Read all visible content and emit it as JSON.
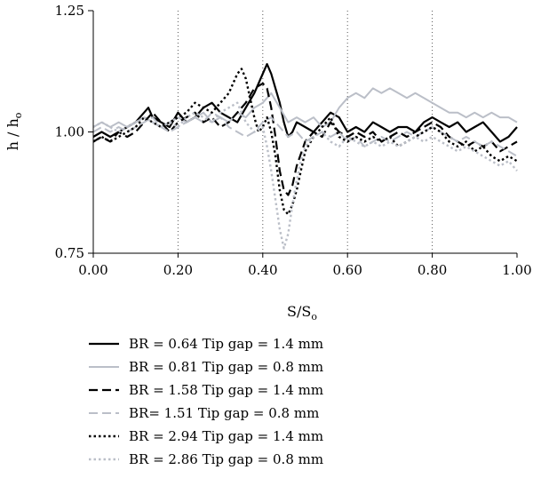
{
  "chart_data": {
    "type": "line",
    "xlabel": {
      "main": "S/S",
      "sub": "o"
    },
    "ylabel": {
      "main": "h / h",
      "sub": "o"
    },
    "xlim": [
      0,
      1.0
    ],
    "ylim": [
      0.75,
      1.25
    ],
    "xticks": [
      "0.00",
      "0.20",
      "0.40",
      "0.60",
      "0.80",
      "1.00"
    ],
    "yticks": [
      "0.75",
      "1.00",
      "1.25"
    ],
    "xtick_values": [
      0,
      0.2,
      0.4,
      0.6,
      0.8,
      1.0
    ],
    "ytick_values": [
      0.75,
      1.0,
      1.25
    ],
    "vertical_gridlines": [
      0.2,
      0.4,
      0.6,
      0.8
    ],
    "legend_position": "bottom",
    "series": [
      {
        "name": "BR = 0.64 Tip gap = 1.4 mm",
        "color": "#000000",
        "dash": "solid",
        "width": 2.2,
        "x": [
          0.0,
          0.02,
          0.04,
          0.06,
          0.08,
          0.1,
          0.12,
          0.13,
          0.14,
          0.16,
          0.18,
          0.2,
          0.22,
          0.24,
          0.26,
          0.28,
          0.3,
          0.32,
          0.34,
          0.36,
          0.38,
          0.4,
          0.41,
          0.42,
          0.43,
          0.44,
          0.45,
          0.46,
          0.47,
          0.48,
          0.5,
          0.52,
          0.54,
          0.56,
          0.58,
          0.6,
          0.62,
          0.64,
          0.66,
          0.68,
          0.7,
          0.72,
          0.74,
          0.76,
          0.78,
          0.8,
          0.82,
          0.84,
          0.86,
          0.88,
          0.9,
          0.92,
          0.94,
          0.96,
          0.98,
          1.0
        ],
        "y": [
          0.99,
          1.0,
          0.99,
          1.0,
          1.01,
          1.02,
          1.04,
          1.05,
          1.03,
          1.02,
          1.01,
          1.04,
          1.02,
          1.03,
          1.05,
          1.06,
          1.04,
          1.03,
          1.02,
          1.05,
          1.08,
          1.12,
          1.14,
          1.12,
          1.09,
          1.06,
          1.02,
          0.99,
          1.0,
          1.02,
          1.01,
          1.0,
          1.02,
          1.04,
          1.03,
          1.0,
          1.01,
          1.0,
          1.02,
          1.01,
          1.0,
          1.01,
          1.01,
          1.0,
          1.02,
          1.03,
          1.02,
          1.01,
          1.02,
          1.0,
          1.01,
          1.02,
          1.0,
          0.98,
          0.99,
          1.01
        ]
      },
      {
        "name": "BR = 0.81 Tip gap = 0.8 mm",
        "color": "#bbbfc8",
        "dash": "solid",
        "width": 2.0,
        "x": [
          0.0,
          0.02,
          0.04,
          0.06,
          0.08,
          0.1,
          0.12,
          0.14,
          0.16,
          0.18,
          0.2,
          0.22,
          0.24,
          0.26,
          0.28,
          0.3,
          0.32,
          0.34,
          0.36,
          0.38,
          0.4,
          0.42,
          0.44,
          0.46,
          0.48,
          0.5,
          0.52,
          0.54,
          0.56,
          0.58,
          0.6,
          0.62,
          0.64,
          0.66,
          0.68,
          0.7,
          0.72,
          0.74,
          0.76,
          0.78,
          0.8,
          0.82,
          0.84,
          0.86,
          0.88,
          0.9,
          0.92,
          0.94,
          0.96,
          0.98,
          1.0
        ],
        "y": [
          1.01,
          1.02,
          1.01,
          1.02,
          1.01,
          1.02,
          1.03,
          1.02,
          1.01,
          1.02,
          1.03,
          1.02,
          1.03,
          1.04,
          1.02,
          1.03,
          1.02,
          1.04,
          1.03,
          1.05,
          1.06,
          1.08,
          1.05,
          1.02,
          1.03,
          1.02,
          1.03,
          1.01,
          1.02,
          1.05,
          1.07,
          1.08,
          1.07,
          1.09,
          1.08,
          1.09,
          1.08,
          1.07,
          1.08,
          1.07,
          1.06,
          1.05,
          1.04,
          1.04,
          1.03,
          1.04,
          1.03,
          1.04,
          1.03,
          1.03,
          1.02
        ]
      },
      {
        "name": "BR = 1.58 Tip gap = 1.4 mm",
        "color": "#000000",
        "dash": "10,5",
        "width": 2.2,
        "x": [
          0.0,
          0.02,
          0.04,
          0.06,
          0.08,
          0.1,
          0.12,
          0.14,
          0.16,
          0.18,
          0.2,
          0.22,
          0.24,
          0.26,
          0.28,
          0.3,
          0.32,
          0.34,
          0.36,
          0.38,
          0.4,
          0.41,
          0.42,
          0.43,
          0.44,
          0.45,
          0.46,
          0.47,
          0.48,
          0.5,
          0.52,
          0.54,
          0.56,
          0.58,
          0.6,
          0.62,
          0.64,
          0.66,
          0.68,
          0.7,
          0.72,
          0.74,
          0.76,
          0.78,
          0.8,
          0.82,
          0.84,
          0.86,
          0.88,
          0.9,
          0.92,
          0.94,
          0.96,
          0.98,
          1.0
        ],
        "y": [
          0.98,
          0.99,
          0.98,
          1.0,
          0.99,
          1.0,
          1.02,
          1.04,
          1.02,
          1.0,
          1.02,
          1.03,
          1.04,
          1.02,
          1.03,
          1.01,
          1.02,
          1.04,
          1.06,
          1.09,
          1.1,
          1.09,
          1.05,
          0.99,
          0.92,
          0.88,
          0.87,
          0.89,
          0.93,
          0.98,
          1.0,
          0.99,
          1.02,
          1.0,
          0.99,
          1.0,
          0.99,
          1.0,
          0.98,
          0.99,
          1.0,
          0.99,
          1.0,
          1.01,
          1.02,
          1.01,
          0.99,
          0.98,
          0.97,
          0.98,
          0.97,
          0.98,
          0.96,
          0.97,
          0.98
        ]
      },
      {
        "name": "BR= 1.51 Tip gap = 0.8 mm",
        "color": "#bbbfc8",
        "dash": "10,5",
        "width": 2.0,
        "x": [
          0.0,
          0.02,
          0.04,
          0.06,
          0.08,
          0.1,
          0.12,
          0.14,
          0.16,
          0.18,
          0.2,
          0.22,
          0.24,
          0.26,
          0.28,
          0.3,
          0.32,
          0.34,
          0.36,
          0.38,
          0.4,
          0.42,
          0.44,
          0.46,
          0.48,
          0.5,
          0.52,
          0.54,
          0.56,
          0.58,
          0.6,
          0.62,
          0.64,
          0.66,
          0.68,
          0.7,
          0.72,
          0.74,
          0.76,
          0.78,
          0.8,
          0.82,
          0.84,
          0.86,
          0.88,
          0.9,
          0.92,
          0.94,
          0.96,
          0.98,
          1.0
        ],
        "y": [
          1.0,
          1.01,
          1.0,
          1.01,
          1.0,
          1.01,
          1.02,
          1.03,
          1.01,
          1.0,
          1.01,
          1.02,
          1.03,
          1.02,
          1.04,
          1.03,
          1.01,
          1.0,
          0.99,
          1.0,
          1.02,
          1.03,
          1.01,
          0.99,
          1.0,
          0.98,
          0.99,
          1.0,
          0.99,
          1.0,
          0.98,
          0.99,
          0.97,
          0.98,
          0.99,
          0.98,
          0.99,
          1.0,
          0.99,
          1.0,
          1.01,
          1.0,
          0.99,
          0.98,
          0.99,
          0.98,
          0.97,
          0.98,
          0.97,
          0.96,
          0.95
        ]
      },
      {
        "name": "BR = 2.94 Tip gap = 1.4 mm",
        "color": "#000000",
        "dash": "2.5,3",
        "width": 2.4,
        "x": [
          0.0,
          0.02,
          0.04,
          0.06,
          0.08,
          0.1,
          0.12,
          0.14,
          0.16,
          0.18,
          0.2,
          0.22,
          0.24,
          0.26,
          0.28,
          0.3,
          0.32,
          0.34,
          0.35,
          0.36,
          0.37,
          0.38,
          0.39,
          0.4,
          0.41,
          0.42,
          0.43,
          0.44,
          0.45,
          0.46,
          0.47,
          0.48,
          0.49,
          0.5,
          0.52,
          0.54,
          0.56,
          0.58,
          0.6,
          0.62,
          0.64,
          0.66,
          0.68,
          0.7,
          0.72,
          0.74,
          0.76,
          0.78,
          0.8,
          0.82,
          0.84,
          0.86,
          0.88,
          0.9,
          0.92,
          0.94,
          0.96,
          0.98,
          1.0
        ],
        "y": [
          0.98,
          0.99,
          0.98,
          0.99,
          1.0,
          1.01,
          1.03,
          1.02,
          1.01,
          1.02,
          1.03,
          1.04,
          1.06,
          1.05,
          1.04,
          1.06,
          1.08,
          1.12,
          1.13,
          1.11,
          1.07,
          1.03,
          1.0,
          1.01,
          1.03,
          1.0,
          0.95,
          0.88,
          0.84,
          0.83,
          0.85,
          0.88,
          0.92,
          0.96,
          0.99,
          1.01,
          1.03,
          0.99,
          0.98,
          0.99,
          0.98,
          0.99,
          0.98,
          0.99,
          0.97,
          0.98,
          0.99,
          1.0,
          1.01,
          1.0,
          0.98,
          0.97,
          0.98,
          0.96,
          0.97,
          0.95,
          0.94,
          0.95,
          0.94
        ]
      },
      {
        "name": "BR = 2.86 Tip gap = 0.8 mm",
        "color": "#bbbfc8",
        "dash": "2.5,3",
        "width": 2.4,
        "x": [
          0.0,
          0.02,
          0.04,
          0.06,
          0.08,
          0.1,
          0.12,
          0.14,
          0.16,
          0.18,
          0.2,
          0.22,
          0.24,
          0.26,
          0.28,
          0.3,
          0.32,
          0.34,
          0.36,
          0.38,
          0.4,
          0.41,
          0.42,
          0.43,
          0.44,
          0.45,
          0.46,
          0.47,
          0.48,
          0.49,
          0.5,
          0.52,
          0.54,
          0.56,
          0.58,
          0.6,
          0.62,
          0.64,
          0.66,
          0.68,
          0.7,
          0.72,
          0.74,
          0.76,
          0.78,
          0.8,
          0.82,
          0.84,
          0.86,
          0.88,
          0.9,
          0.92,
          0.94,
          0.96,
          0.98,
          1.0
        ],
        "y": [
          1.01,
          1.02,
          1.01,
          1.0,
          1.01,
          1.02,
          1.03,
          1.02,
          1.01,
          1.02,
          1.01,
          1.03,
          1.04,
          1.03,
          1.02,
          1.04,
          1.05,
          1.06,
          1.02,
          1.0,
          1.01,
          0.97,
          0.92,
          0.86,
          0.8,
          0.76,
          0.79,
          0.85,
          0.9,
          0.94,
          0.97,
          0.99,
          1.0,
          0.98,
          0.97,
          0.99,
          0.98,
          0.97,
          0.98,
          0.97,
          0.98,
          0.97,
          0.98,
          0.99,
          0.98,
          0.99,
          0.98,
          0.97,
          0.96,
          0.97,
          0.96,
          0.95,
          0.94,
          0.93,
          0.94,
          0.92
        ]
      }
    ]
  }
}
